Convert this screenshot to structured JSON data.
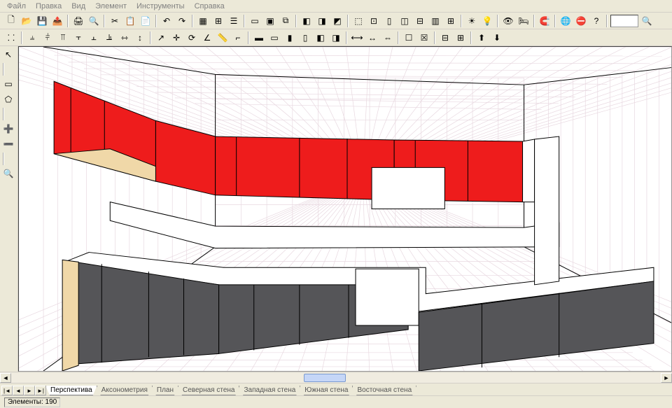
{
  "menu": {
    "items": [
      "Файл",
      "Правка",
      "Вид",
      "Элемент",
      "Инструменты",
      "Справка"
    ]
  },
  "toolbars": {
    "row1": [
      "new",
      "open",
      "save",
      "export",
      "|",
      "print",
      "preview",
      "|",
      "cut",
      "copy",
      "paste",
      "|",
      "undo",
      "redo",
      "|",
      "grid",
      "snap",
      "layers",
      "|",
      "box",
      "boxes",
      "boxes2",
      "|",
      "render1",
      "render2",
      "render3",
      "|",
      "room",
      "roomopt",
      "roomwall",
      "roomdoor",
      "roomwin",
      "roomcol",
      "roomdim",
      "|",
      "light",
      "bulb",
      "|",
      "view1",
      "bed",
      "|",
      "magnet",
      "|",
      "globe",
      "stop",
      "help",
      "|",
      "combo",
      "zoom"
    ],
    "row2": [
      "selgrid",
      "|",
      "align-l",
      "align-c",
      "align-r",
      "align-t",
      "align-m",
      "align-b",
      "dist-h",
      "dist-v",
      "|",
      "arrow",
      "cross",
      "rotate",
      "angle",
      "ruler",
      "corner",
      "|",
      "elem1",
      "elem2",
      "elem3",
      "elem4",
      "elem5",
      "elem6",
      "|",
      "dim1",
      "dim2",
      "dim3",
      "|",
      "obj1",
      "obj2",
      "|",
      "split1",
      "split2",
      "|",
      "order1",
      "order2"
    ],
    "left": [
      "pointer",
      "|",
      "rect",
      "poly",
      "|",
      "add-node",
      "del-node",
      "|",
      "zoom"
    ]
  },
  "icons": {
    "new": "🗋",
    "open": "📂",
    "save": "💾",
    "export": "📤",
    "print": "🖨",
    "preview": "🔍",
    "cut": "✂",
    "copy": "📋",
    "paste": "📄",
    "undo": "↶",
    "redo": "↷",
    "grid": "▦",
    "snap": "⊞",
    "layers": "☰",
    "box": "▭",
    "boxes": "▣",
    "boxes2": "⧉",
    "render1": "◧",
    "render2": "◨",
    "render3": "◩",
    "room": "⬚",
    "roomopt": "⊡",
    "roomwall": "▯",
    "roomdoor": "◫",
    "roomwin": "⊟",
    "roomcol": "▥",
    "roomdim": "⊞",
    "light": "☀",
    "bulb": "💡",
    "view1": "👁",
    "bed": "🛏",
    "magnet": "🧲",
    "globe": "🌐",
    "stop": "⛔",
    "help": "?",
    "zoom": "🔍",
    "selgrid": "⸬",
    "align-l": "⫨",
    "align-c": "⫩",
    "align-r": "⫪",
    "align-t": "⫟",
    "align-m": "⫠",
    "align-b": "⫡",
    "dist-h": "⇿",
    "dist-v": "↕",
    "arrow": "↗",
    "cross": "✛",
    "rotate": "⟳",
    "angle": "∠",
    "ruler": "📏",
    "corner": "⌐",
    "elem1": "▬",
    "elem2": "▭",
    "elem3": "▮",
    "elem4": "▯",
    "elem5": "◧",
    "elem6": "◨",
    "dim1": "⟷",
    "dim2": "↔",
    "dim3": "⇔",
    "obj1": "☐",
    "obj2": "☒",
    "split1": "⊟",
    "split2": "⊞",
    "order1": "⬆",
    "order2": "⬇",
    "pointer": "↖",
    "rect": "▭",
    "poly": "⬠",
    "add-node": "➕",
    "del-node": "➖"
  },
  "tabs": {
    "items": [
      "Перспектива",
      "Аксонометрия",
      "План",
      "Северная стена",
      "Западная стена",
      "Южная стена",
      "Восточная стена"
    ],
    "active": 0
  },
  "status": {
    "elements_label": "Элементы:",
    "elements_count": "190"
  },
  "viewport": {
    "background": "#ffffff",
    "grid_color": "#e8d8e0",
    "upper_cabinet_color": "#ee1c1c",
    "upper_cabinet_stroke": "#000000",
    "lower_cabinet_color": "#555558",
    "lower_cabinet_stroke": "#000000",
    "counter_color": "#ffffff",
    "wood_color": "#f0d8a8",
    "wall_color": "#ffffff",
    "line_color": "#000000"
  }
}
